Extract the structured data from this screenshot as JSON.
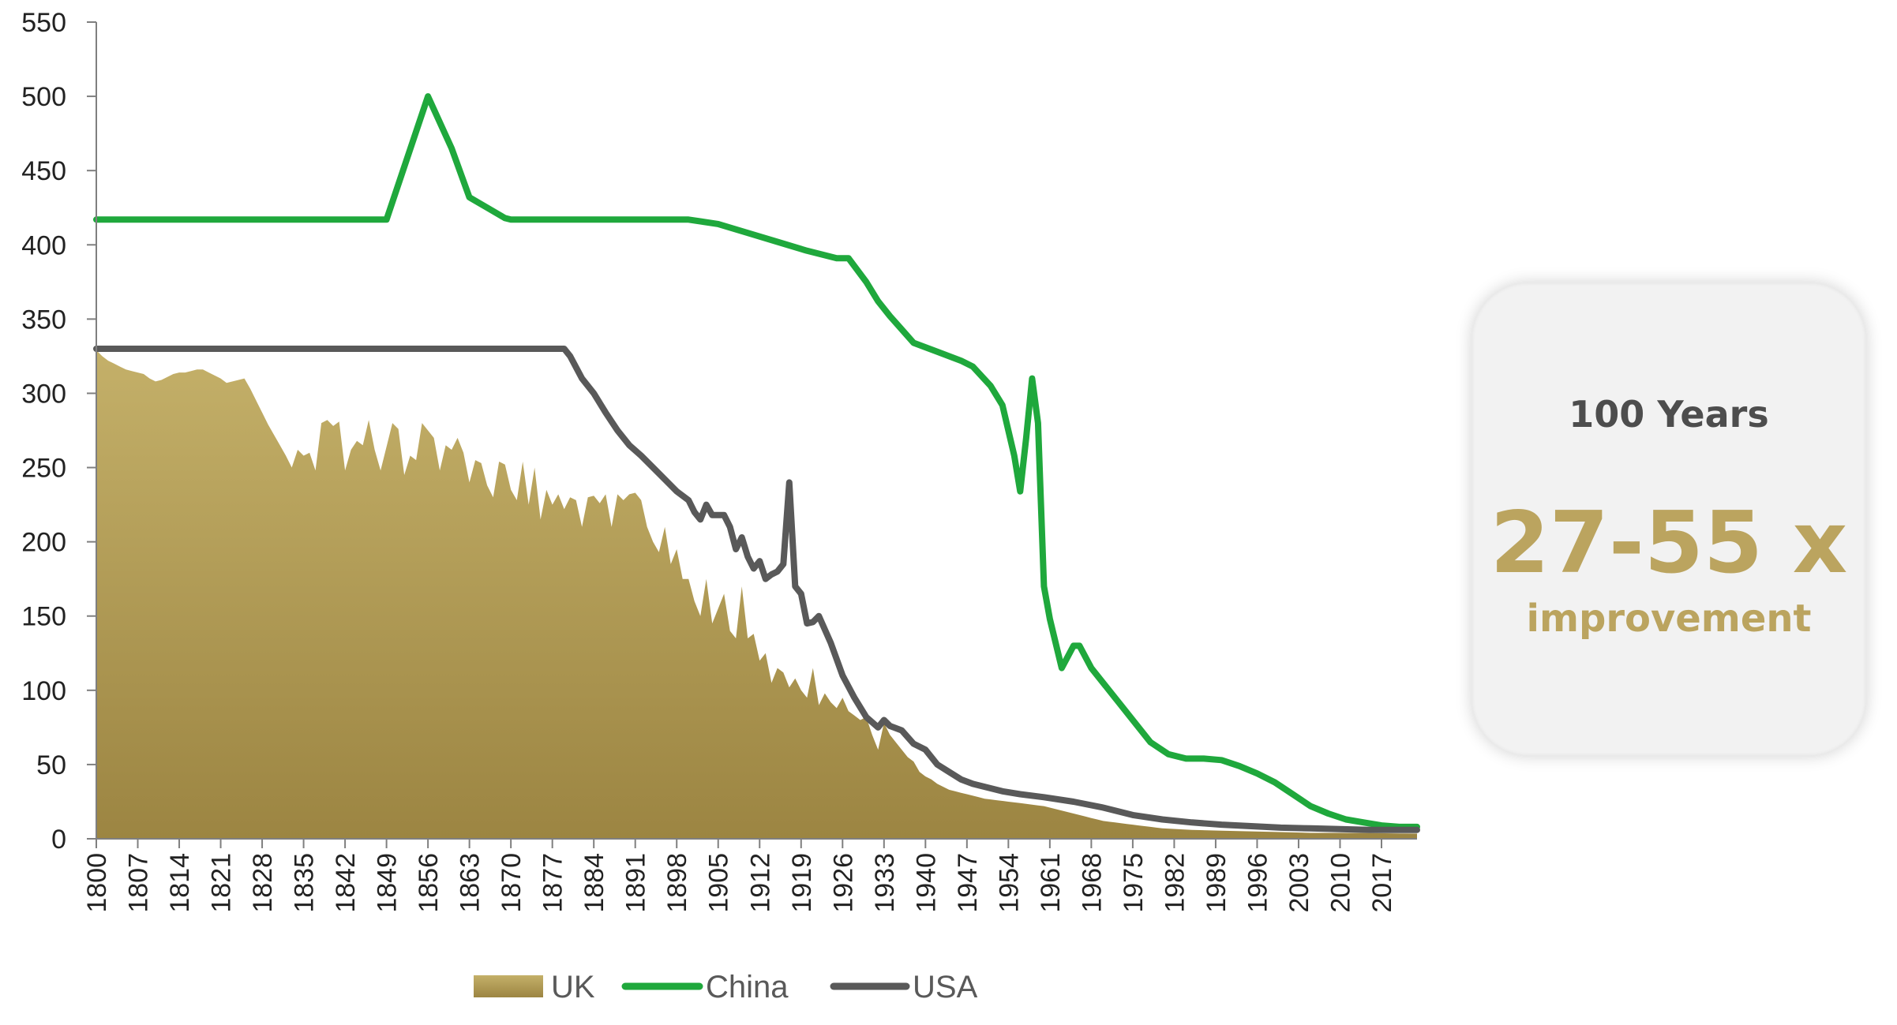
{
  "chart_data": {
    "type": "line",
    "title": "",
    "xlabel": "",
    "ylabel": "",
    "xlim": [
      1800,
      2023
    ],
    "ylim": [
      0,
      550
    ],
    "yticks": [
      0,
      50,
      100,
      150,
      200,
      250,
      300,
      350,
      400,
      450,
      500,
      550
    ],
    "xticks": [
      1800,
      1807,
      1814,
      1821,
      1828,
      1835,
      1842,
      1849,
      1856,
      1863,
      1870,
      1877,
      1884,
      1891,
      1898,
      1905,
      1912,
      1919,
      1926,
      1933,
      1940,
      1947,
      1954,
      1961,
      1968,
      1975,
      1982,
      1989,
      1996,
      2003,
      2010,
      2017
    ],
    "grid": false,
    "legend_position": "bottom",
    "colors": {
      "UK": "#b5a05a",
      "UK_dark": "#9c8542",
      "China": "#1fa83c",
      "USA": "#595959"
    },
    "series": [
      {
        "name": "UK",
        "style": "area",
        "points": [
          [
            1800,
            329
          ],
          [
            1801,
            325
          ],
          [
            1802,
            322
          ],
          [
            1803,
            320
          ],
          [
            1804,
            318
          ],
          [
            1805,
            316
          ],
          [
            1806,
            315
          ],
          [
            1807,
            314
          ],
          [
            1808,
            313
          ],
          [
            1809,
            310
          ],
          [
            1810,
            308
          ],
          [
            1811,
            309
          ],
          [
            1812,
            311
          ],
          [
            1813,
            313
          ],
          [
            1814,
            314
          ],
          [
            1815,
            314
          ],
          [
            1816,
            315
          ],
          [
            1817,
            316
          ],
          [
            1818,
            316
          ],
          [
            1819,
            314
          ],
          [
            1820,
            312
          ],
          [
            1821,
            310
          ],
          [
            1822,
            307
          ],
          [
            1823,
            308
          ],
          [
            1824,
            309
          ],
          [
            1825,
            310
          ],
          [
            1826,
            303
          ],
          [
            1827,
            295
          ],
          [
            1828,
            287
          ],
          [
            1829,
            279
          ],
          [
            1830,
            272
          ],
          [
            1831,
            265
          ],
          [
            1832,
            258
          ],
          [
            1833,
            250
          ],
          [
            1834,
            262
          ],
          [
            1835,
            258
          ],
          [
            1836,
            260
          ],
          [
            1837,
            248
          ],
          [
            1838,
            280
          ],
          [
            1839,
            282
          ],
          [
            1840,
            278
          ],
          [
            1841,
            281
          ],
          [
            1842,
            248
          ],
          [
            1843,
            262
          ],
          [
            1844,
            268
          ],
          [
            1845,
            265
          ],
          [
            1846,
            282
          ],
          [
            1847,
            262
          ],
          [
            1848,
            248
          ],
          [
            1849,
            264
          ],
          [
            1850,
            280
          ],
          [
            1851,
            276
          ],
          [
            1852,
            245
          ],
          [
            1853,
            258
          ],
          [
            1854,
            255
          ],
          [
            1855,
            280
          ],
          [
            1856,
            275
          ],
          [
            1857,
            270
          ],
          [
            1858,
            248
          ],
          [
            1859,
            265
          ],
          [
            1860,
            262
          ],
          [
            1861,
            270
          ],
          [
            1862,
            260
          ],
          [
            1863,
            240
          ],
          [
            1864,
            255
          ],
          [
            1865,
            253
          ],
          [
            1866,
            238
          ],
          [
            1867,
            230
          ],
          [
            1868,
            254
          ],
          [
            1869,
            252
          ],
          [
            1870,
            235
          ],
          [
            1871,
            228
          ],
          [
            1872,
            254
          ],
          [
            1873,
            225
          ],
          [
            1874,
            250
          ],
          [
            1875,
            215
          ],
          [
            1876,
            235
          ],
          [
            1877,
            225
          ],
          [
            1878,
            232
          ],
          [
            1879,
            222
          ],
          [
            1880,
            230
          ],
          [
            1881,
            228
          ],
          [
            1882,
            210
          ],
          [
            1883,
            230
          ],
          [
            1884,
            231
          ],
          [
            1885,
            226
          ],
          [
            1886,
            232
          ],
          [
            1887,
            210
          ],
          [
            1888,
            232
          ],
          [
            1889,
            228
          ],
          [
            1890,
            232
          ],
          [
            1891,
            233
          ],
          [
            1892,
            228
          ],
          [
            1893,
            210
          ],
          [
            1894,
            200
          ],
          [
            1895,
            193
          ],
          [
            1896,
            210
          ],
          [
            1897,
            185
          ],
          [
            1898,
            195
          ],
          [
            1899,
            175
          ],
          [
            1900,
            175
          ],
          [
            1901,
            160
          ],
          [
            1902,
            150
          ],
          [
            1903,
            175
          ],
          [
            1904,
            145
          ],
          [
            1905,
            155
          ],
          [
            1906,
            165
          ],
          [
            1907,
            140
          ],
          [
            1908,
            135
          ],
          [
            1909,
            170
          ],
          [
            1910,
            135
          ],
          [
            1911,
            138
          ],
          [
            1912,
            120
          ],
          [
            1913,
            125
          ],
          [
            1914,
            105
          ],
          [
            1915,
            115
          ],
          [
            1916,
            112
          ],
          [
            1917,
            102
          ],
          [
            1918,
            108
          ],
          [
            1919,
            100
          ],
          [
            1920,
            95
          ],
          [
            1921,
            115
          ],
          [
            1922,
            90
          ],
          [
            1923,
            98
          ],
          [
            1924,
            92
          ],
          [
            1925,
            88
          ],
          [
            1926,
            95
          ],
          [
            1927,
            86
          ],
          [
            1928,
            83
          ],
          [
            1929,
            80
          ],
          [
            1930,
            82
          ],
          [
            1931,
            70
          ],
          [
            1932,
            60
          ],
          [
            1933,
            78
          ],
          [
            1934,
            70
          ],
          [
            1935,
            65
          ],
          [
            1936,
            60
          ],
          [
            1937,
            55
          ],
          [
            1938,
            52
          ],
          [
            1939,
            45
          ],
          [
            1940,
            42
          ],
          [
            1941,
            40
          ],
          [
            1942,
            37
          ],
          [
            1943,
            35
          ],
          [
            1944,
            33
          ],
          [
            1945,
            32
          ],
          [
            1946,
            31
          ],
          [
            1947,
            30
          ],
          [
            1948,
            29
          ],
          [
            1949,
            28
          ],
          [
            1950,
            27
          ],
          [
            1951,
            26.5
          ],
          [
            1952,
            26
          ],
          [
            1953,
            25.5
          ],
          [
            1954,
            25
          ],
          [
            1955,
            24.5
          ],
          [
            1956,
            24
          ],
          [
            1957,
            23.5
          ],
          [
            1958,
            23
          ],
          [
            1959,
            22.5
          ],
          [
            1960,
            22
          ],
          [
            1961,
            21
          ],
          [
            1962,
            20
          ],
          [
            1963,
            19
          ],
          [
            1964,
            18
          ],
          [
            1965,
            17
          ],
          [
            1966,
            16
          ],
          [
            1967,
            15
          ],
          [
            1968,
            14
          ],
          [
            1969,
            13
          ],
          [
            1970,
            12
          ],
          [
            1971,
            11.5
          ],
          [
            1972,
            11
          ],
          [
            1973,
            10.5
          ],
          [
            1974,
            10
          ],
          [
            1975,
            9.5
          ],
          [
            1976,
            9
          ],
          [
            1977,
            8.5
          ],
          [
            1978,
            8
          ],
          [
            1979,
            7.5
          ],
          [
            1980,
            7
          ],
          [
            1985,
            6
          ],
          [
            1990,
            5.5
          ],
          [
            1995,
            5
          ],
          [
            2000,
            4.5
          ],
          [
            2005,
            4
          ],
          [
            2010,
            4
          ],
          [
            2015,
            3.8
          ],
          [
            2020,
            3.6
          ],
          [
            2023,
            3.5
          ]
        ]
      },
      {
        "name": "China",
        "style": "line",
        "points": [
          [
            1800,
            417
          ],
          [
            1849,
            417
          ],
          [
            1856,
            500
          ],
          [
            1860,
            465
          ],
          [
            1863,
            432
          ],
          [
            1866,
            425
          ],
          [
            1869,
            418
          ],
          [
            1870,
            417
          ],
          [
            1900,
            417
          ],
          [
            1905,
            414
          ],
          [
            1910,
            408
          ],
          [
            1915,
            402
          ],
          [
            1920,
            396
          ],
          [
            1925,
            391
          ],
          [
            1927,
            391
          ],
          [
            1930,
            375
          ],
          [
            1932,
            362
          ],
          [
            1934,
            352
          ],
          [
            1938,
            334
          ],
          [
            1942,
            328
          ],
          [
            1946,
            322
          ],
          [
            1948,
            318
          ],
          [
            1951,
            305
          ],
          [
            1953,
            292
          ],
          [
            1955,
            258
          ],
          [
            1956,
            234
          ],
          [
            1957,
            270
          ],
          [
            1958,
            310
          ],
          [
            1959,
            280
          ],
          [
            1960,
            170
          ],
          [
            1961,
            148
          ],
          [
            1963,
            115
          ],
          [
            1965,
            130
          ],
          [
            1966,
            130
          ],
          [
            1968,
            115
          ],
          [
            1972,
            95
          ],
          [
            1975,
            80
          ],
          [
            1978,
            65
          ],
          [
            1981,
            57
          ],
          [
            1984,
            54
          ],
          [
            1987,
            54
          ],
          [
            1990,
            53
          ],
          [
            1993,
            49
          ],
          [
            1996,
            44
          ],
          [
            1999,
            38
          ],
          [
            2002,
            30
          ],
          [
            2005,
            22
          ],
          [
            2008,
            17
          ],
          [
            2011,
            13
          ],
          [
            2014,
            11
          ],
          [
            2017,
            9
          ],
          [
            2020,
            8
          ],
          [
            2023,
            8
          ]
        ]
      },
      {
        "name": "USA",
        "style": "line",
        "points": [
          [
            1800,
            330
          ],
          [
            1879,
            330
          ],
          [
            1880,
            325
          ],
          [
            1882,
            310
          ],
          [
            1884,
            300
          ],
          [
            1886,
            287
          ],
          [
            1888,
            275
          ],
          [
            1890,
            265
          ],
          [
            1892,
            258
          ],
          [
            1894,
            250
          ],
          [
            1896,
            242
          ],
          [
            1898,
            234
          ],
          [
            1900,
            228
          ],
          [
            1901,
            220
          ],
          [
            1902,
            215
          ],
          [
            1903,
            225
          ],
          [
            1904,
            218
          ],
          [
            1906,
            218
          ],
          [
            1907,
            210
          ],
          [
            1908,
            195
          ],
          [
            1909,
            203
          ],
          [
            1910,
            190
          ],
          [
            1911,
            182
          ],
          [
            1912,
            187
          ],
          [
            1913,
            175
          ],
          [
            1914,
            178
          ],
          [
            1915,
            180
          ],
          [
            1916,
            185
          ],
          [
            1917,
            240
          ],
          [
            1918,
            170
          ],
          [
            1919,
            165
          ],
          [
            1920,
            145
          ],
          [
            1921,
            146
          ],
          [
            1922,
            150
          ],
          [
            1924,
            132
          ],
          [
            1926,
            110
          ],
          [
            1928,
            95
          ],
          [
            1930,
            82
          ],
          [
            1932,
            75
          ],
          [
            1933,
            80
          ],
          [
            1934,
            76
          ],
          [
            1936,
            73
          ],
          [
            1938,
            64
          ],
          [
            1940,
            60
          ],
          [
            1942,
            50
          ],
          [
            1944,
            45
          ],
          [
            1946,
            40
          ],
          [
            1948,
            37
          ],
          [
            1950,
            35
          ],
          [
            1953,
            32
          ],
          [
            1956,
            30
          ],
          [
            1960,
            28
          ],
          [
            1965,
            25
          ],
          [
            1970,
            21
          ],
          [
            1975,
            16
          ],
          [
            1980,
            13
          ],
          [
            1985,
            11
          ],
          [
            1990,
            9.5
          ],
          [
            1995,
            8.5
          ],
          [
            2000,
            7.5
          ],
          [
            2005,
            7
          ],
          [
            2010,
            6.5
          ],
          [
            2015,
            6
          ],
          [
            2020,
            6
          ],
          [
            2023,
            6
          ]
        ]
      }
    ]
  },
  "legend": {
    "items": [
      {
        "label": "UK"
      },
      {
        "label": "China"
      },
      {
        "label": "USA"
      }
    ]
  },
  "callout": {
    "years": "100 Years",
    "factor": "27-55 x",
    "word": "improvement"
  }
}
